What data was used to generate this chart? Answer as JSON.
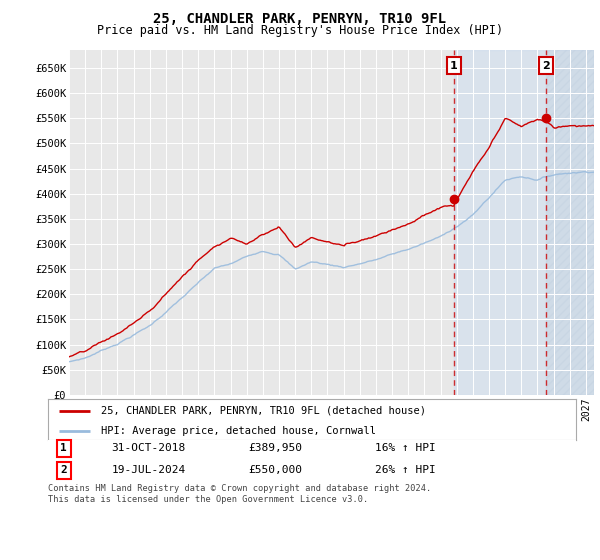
{
  "title": "25, CHANDLER PARK, PENRYN, TR10 9FL",
  "subtitle": "Price paid vs. HM Land Registry's House Price Index (HPI)",
  "title_fontsize": 10,
  "subtitle_fontsize": 8.5,
  "ylabel_ticks": [
    "£0",
    "£50K",
    "£100K",
    "£150K",
    "£200K",
    "£250K",
    "£300K",
    "£350K",
    "£400K",
    "£450K",
    "£500K",
    "£550K",
    "£600K",
    "£650K"
  ],
  "ytick_values": [
    0,
    50000,
    100000,
    150000,
    200000,
    250000,
    300000,
    350000,
    400000,
    450000,
    500000,
    550000,
    600000,
    650000
  ],
  "ylim": [
    0,
    685000
  ],
  "xlim_start": 1995.0,
  "xlim_end": 2027.5,
  "background_color": "#ffffff",
  "plot_bg_color": "#e8e8e8",
  "grid_color": "#ffffff",
  "red_line_color": "#cc0000",
  "blue_line_color": "#99bbdd",
  "marker1_x": 2018.83,
  "marker1_y": 389950,
  "marker2_x": 2024.54,
  "marker2_y": 550000,
  "dashed_line_color": "#cc0000",
  "shaded_color": "#ccddf0",
  "shaded_alpha": 0.5,
  "legend_line1": "25, CHANDLER PARK, PENRYN, TR10 9FL (detached house)",
  "legend_line2": "HPI: Average price, detached house, Cornwall",
  "annotation1_num": "1",
  "annotation1_date": "31-OCT-2018",
  "annotation1_price": "£389,950",
  "annotation1_hpi": "16% ↑ HPI",
  "annotation2_num": "2",
  "annotation2_date": "19-JUL-2024",
  "annotation2_price": "£550,000",
  "annotation2_hpi": "26% ↑ HPI",
  "footer": "Contains HM Land Registry data © Crown copyright and database right 2024.\nThis data is licensed under the Open Government Licence v3.0."
}
